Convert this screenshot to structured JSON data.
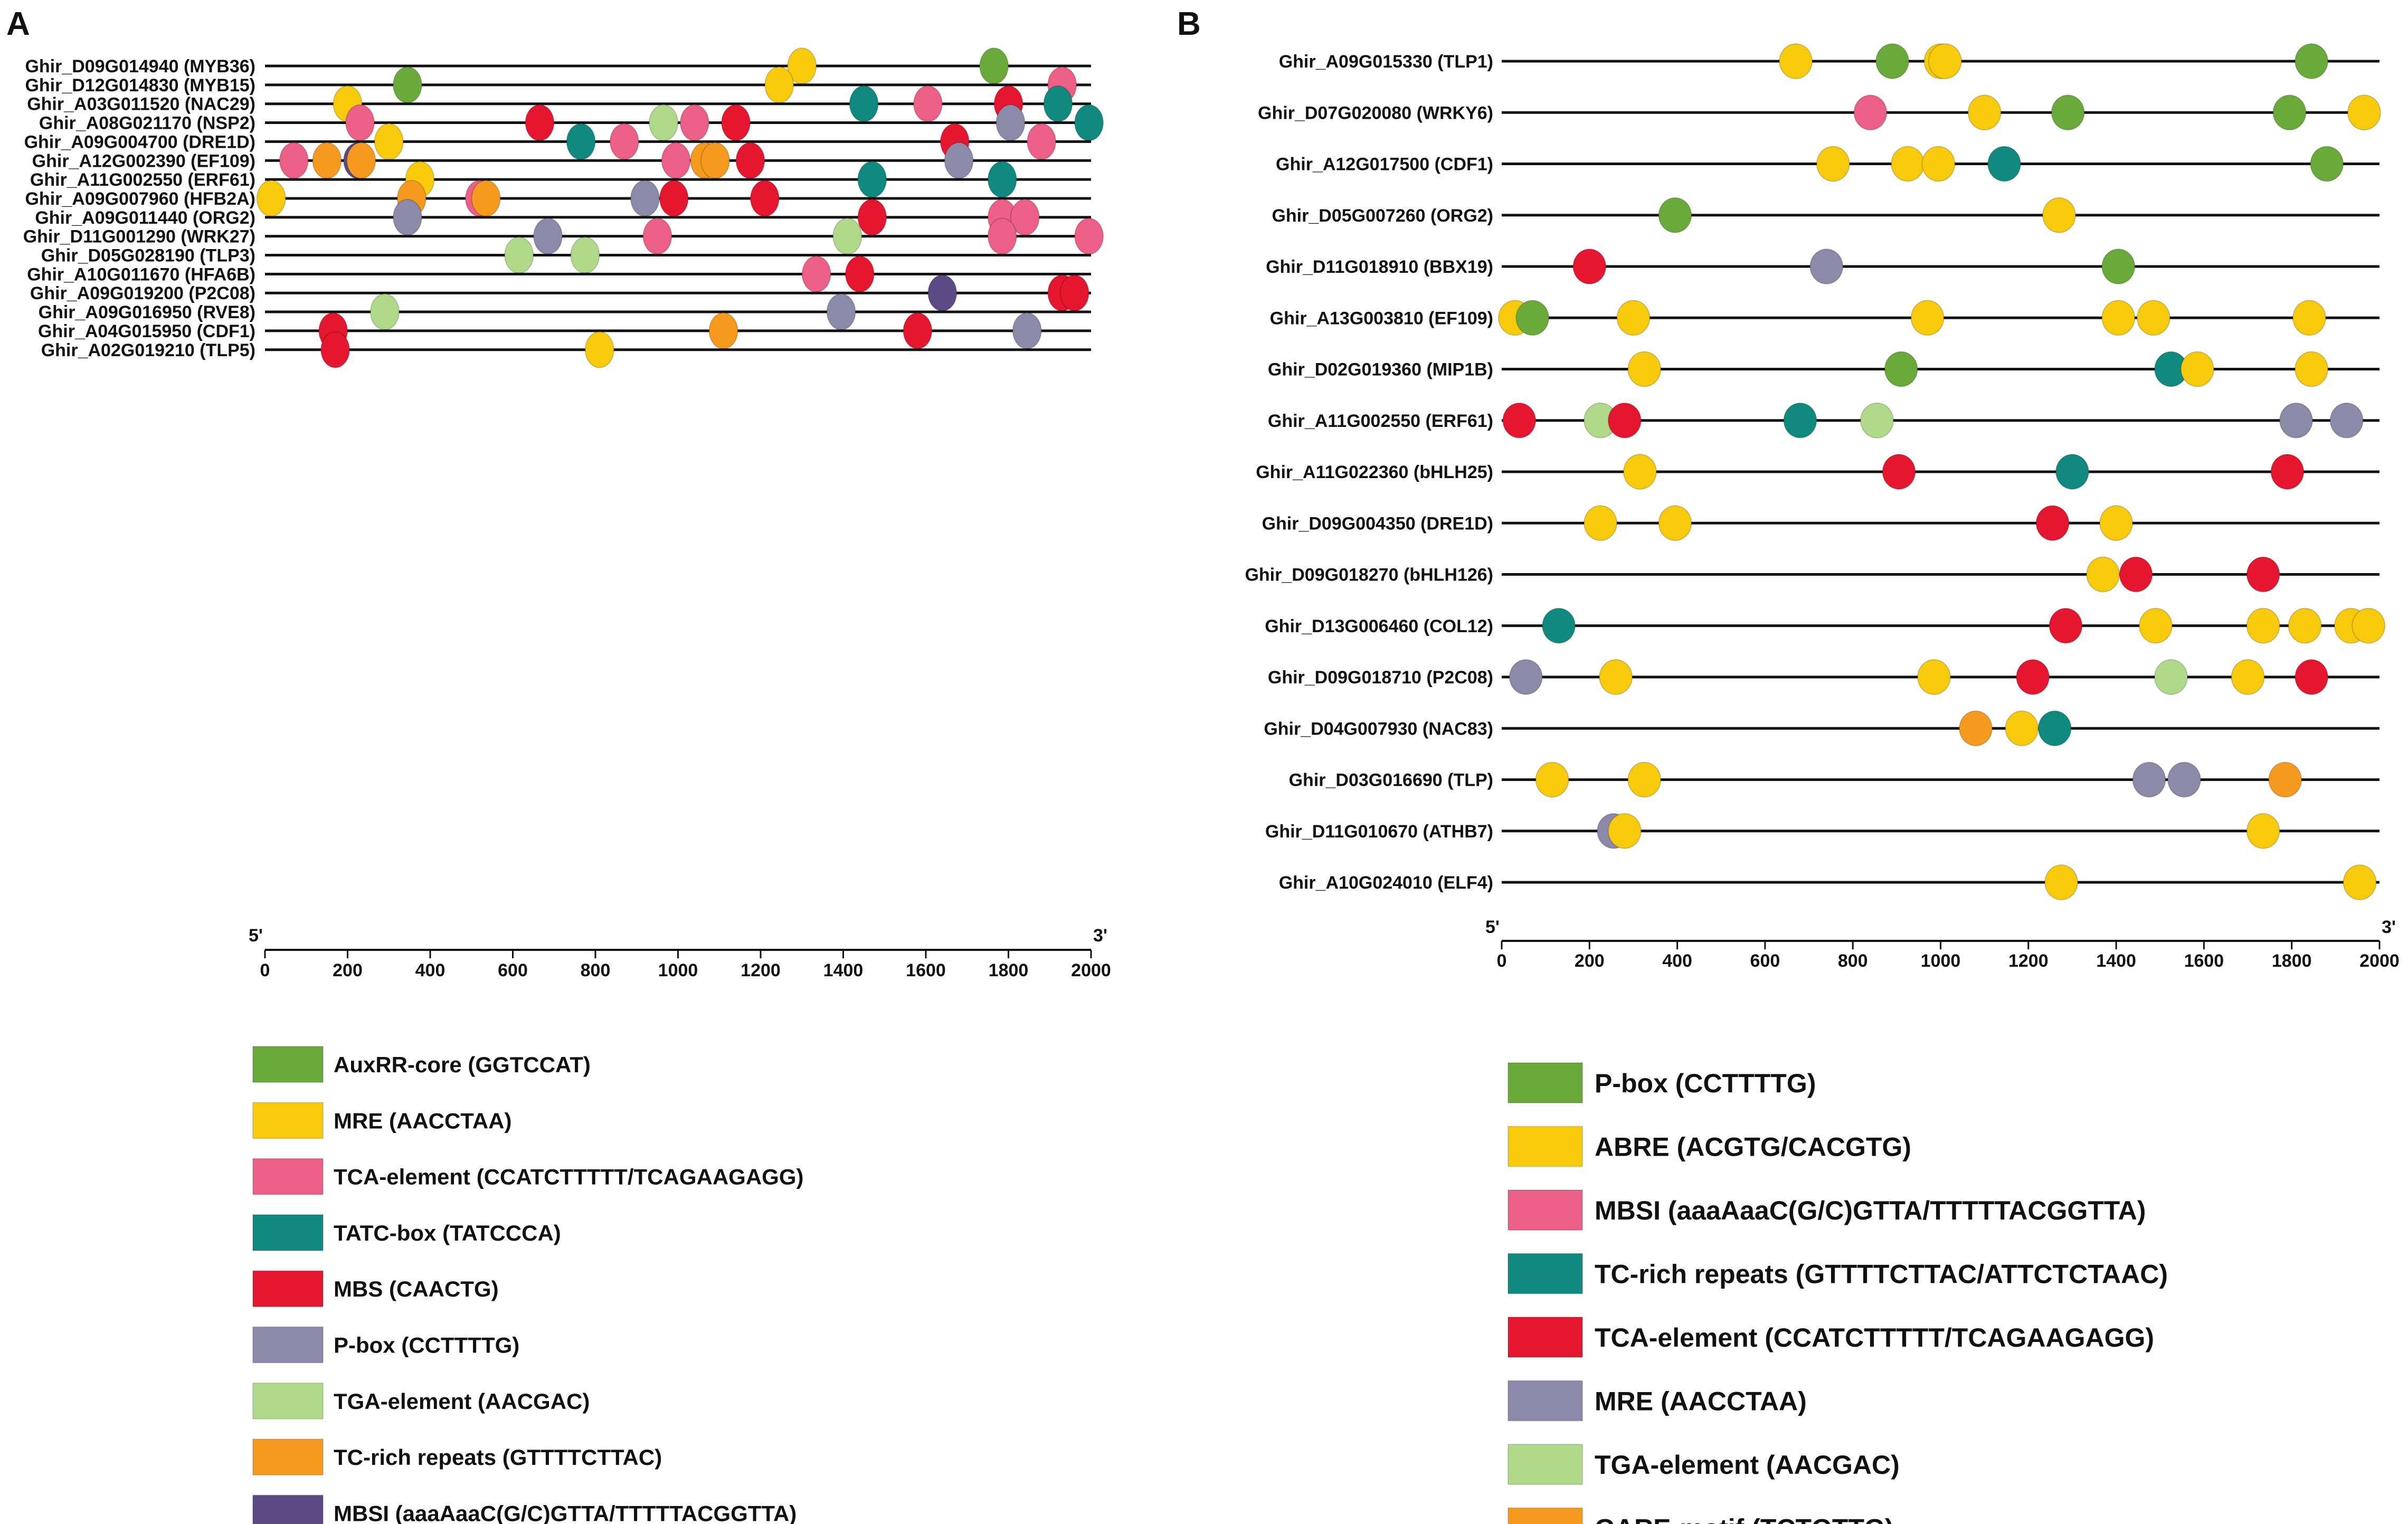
{
  "panels": [
    {
      "letter": "A",
      "axis": {
        "min": 0,
        "max": 2000,
        "ticks": [
          "0",
          "200",
          "400",
          "600",
          "800",
          "1000",
          "1200",
          "1400",
          "1600",
          "1800",
          "2000"
        ],
        "left_label": "5'",
        "right_label": "3'"
      },
      "genes": [
        {
          "label": "Ghir_D09G014940 (MYB36)",
          "elements": [
            {
              "pos": 1300,
              "type": "MRE"
            },
            {
              "pos": 1765,
              "type": "AuxRR"
            }
          ]
        },
        {
          "label": "Ghir_D12G014830 (MYB15)",
          "elements": [
            {
              "pos": 345,
              "type": "AuxRR"
            },
            {
              "pos": 1245,
              "type": "MRE"
            },
            {
              "pos": 1930,
              "type": "TCA"
            }
          ]
        },
        {
          "label": "Ghir_A03G011520 (NAC29)",
          "elements": [
            {
              "pos": 200,
              "type": "MRE"
            },
            {
              "pos": 1450,
              "type": "TATC"
            },
            {
              "pos": 1605,
              "type": "TCA"
            },
            {
              "pos": 1800,
              "type": "MBS"
            },
            {
              "pos": 1920,
              "type": "TATC"
            }
          ]
        },
        {
          "label": "Ghir_A08G021170 (NSP2)",
          "elements": [
            {
              "pos": 230,
              "type": "TCA"
            },
            {
              "pos": 665,
              "type": "MBS"
            },
            {
              "pos": 965,
              "type": "TGA"
            },
            {
              "pos": 1040,
              "type": "TCA"
            },
            {
              "pos": 1140,
              "type": "MBS"
            },
            {
              "pos": 1805,
              "type": "Pbox"
            },
            {
              "pos": 1995,
              "type": "TATC"
            }
          ]
        },
        {
          "label": "Ghir_A09G004700 (DRE1D)",
          "elements": [
            {
              "pos": 300,
              "type": "MRE"
            },
            {
              "pos": 765,
              "type": "TATC"
            },
            {
              "pos": 870,
              "type": "TCA"
            },
            {
              "pos": 1670,
              "type": "MBS"
            },
            {
              "pos": 1880,
              "type": "TCA"
            }
          ]
        },
        {
          "label": "Ghir_A12G002390 (EF109)",
          "elements": [
            {
              "pos": 70,
              "type": "TCA"
            },
            {
              "pos": 150,
              "type": "TCrich"
            },
            {
              "pos": 225,
              "type": "MBSI"
            },
            {
              "pos": 233,
              "type": "TCrich"
            },
            {
              "pos": 995,
              "type": "TCA"
            },
            {
              "pos": 1065,
              "type": "TCrich"
            },
            {
              "pos": 1090,
              "type": "TCrich"
            },
            {
              "pos": 1175,
              "type": "MBS"
            },
            {
              "pos": 1680,
              "type": "Pbox"
            }
          ]
        },
        {
          "label": "Ghir_A11G002550 (ERF61)",
          "elements": [
            {
              "pos": 375,
              "type": "MRE"
            },
            {
              "pos": 1470,
              "type": "TATC"
            },
            {
              "pos": 1785,
              "type": "TATC"
            }
          ]
        },
        {
          "label": "Ghir_A09G007960 (HFB2A)",
          "elements": [
            {
              "pos": 15,
              "type": "MRE"
            },
            {
              "pos": 355,
              "type": "TCrich"
            },
            {
              "pos": 520,
              "type": "TCA"
            },
            {
              "pos": 535,
              "type": "TCrich"
            },
            {
              "pos": 920,
              "type": "Pbox"
            },
            {
              "pos": 990,
              "type": "MBS"
            },
            {
              "pos": 1210,
              "type": "MBS"
            }
          ]
        },
        {
          "label": "Ghir_A09G011440 (ORG2)",
          "elements": [
            {
              "pos": 345,
              "type": "Pbox"
            },
            {
              "pos": 1470,
              "type": "MBS"
            },
            {
              "pos": 1785,
              "type": "TCA"
            },
            {
              "pos": 1840,
              "type": "TCA"
            }
          ]
        },
        {
          "label": "Ghir_D11G001290 (WRK27)",
          "elements": [
            {
              "pos": 685,
              "type": "Pbox"
            },
            {
              "pos": 950,
              "type": "TCA"
            },
            {
              "pos": 1410,
              "type": "TGA"
            },
            {
              "pos": 1785,
              "type": "TCA"
            },
            {
              "pos": 1995,
              "type": "TCA"
            }
          ]
        },
        {
          "label": "Ghir_D05G028190 (TLP3)",
          "elements": [
            {
              "pos": 615,
              "type": "TGA"
            },
            {
              "pos": 775,
              "type": "TGA"
            }
          ]
        },
        {
          "label": "Ghir_A10G011670 (HFA6B)",
          "elements": [
            {
              "pos": 1335,
              "type": "TCA"
            },
            {
              "pos": 1440,
              "type": "MBS"
            }
          ]
        },
        {
          "label": "Ghir_A09G019200 (P2C08)",
          "elements": [
            {
              "pos": 1640,
              "type": "MBSI"
            },
            {
              "pos": 1930,
              "type": "MBS"
            },
            {
              "pos": 1960,
              "type": "MBS"
            }
          ]
        },
        {
          "label": "Ghir_A09G016950 (RVE8)",
          "elements": [
            {
              "pos": 290,
              "type": "TGA"
            },
            {
              "pos": 1395,
              "type": "Pbox"
            }
          ]
        },
        {
          "label": "Ghir_A04G015950 (CDF1)",
          "elements": [
            {
              "pos": 165,
              "type": "MBS"
            },
            {
              "pos": 1110,
              "type": "TCrich"
            },
            {
              "pos": 1580,
              "type": "MBS"
            },
            {
              "pos": 1845,
              "type": "Pbox"
            }
          ]
        },
        {
          "label": "Ghir_A02G019210 (TLP5)",
          "elements": [
            {
              "pos": 170,
              "type": "MBS"
            },
            {
              "pos": 810,
              "type": "MRE"
            }
          ]
        }
      ],
      "legend": [
        {
          "type": "AuxRR",
          "label": "AuxRR-core (GGTCCAT)"
        },
        {
          "type": "MRE",
          "label": "MRE (AACCTAA)"
        },
        {
          "type": "TCA",
          "label": "TCA-element (CCATCTTTTT/TCAGAAGAGG)"
        },
        {
          "type": "TATC",
          "label": "TATC-box (TATCCCA)"
        },
        {
          "type": "MBS",
          "label": "MBS (CAACTG)"
        },
        {
          "type": "Pbox",
          "label": "P-box (CCTTTTG)"
        },
        {
          "type": "TGA",
          "label": "TGA-element (AACGAC)"
        },
        {
          "type": "TCrich",
          "label": "TC-rich repeats (GTTTTCTTAC)"
        },
        {
          "type": "MBSI",
          "label": "MBSI (aaaAaaC(G/C)GTTA/TTTTTACGGTTA)"
        }
      ]
    },
    {
      "letter": "B",
      "axis": {
        "min": 0,
        "max": 2000,
        "ticks": [
          "0",
          "200",
          "400",
          "600",
          "800",
          "1000",
          "1200",
          "1400",
          "1600",
          "1800",
          "2000"
        ],
        "left_label": "5'",
        "right_label": "3'"
      },
      "genes": [
        {
          "label": "Ghir_A09G015330 (TLP1)",
          "elements": [
            {
              "pos": 670,
              "type": "ABRE"
            },
            {
              "pos": 890,
              "type": "Pbox"
            },
            {
              "pos": 1000,
              "type": "ABRE"
            },
            {
              "pos": 1010,
              "type": "ABRE"
            },
            {
              "pos": 1845,
              "type": "Pbox"
            }
          ]
        },
        {
          "label": "Ghir_D07G020080 (WRKY6)",
          "elements": [
            {
              "pos": 840,
              "type": "MBSI"
            },
            {
              "pos": 1100,
              "type": "ABRE"
            },
            {
              "pos": 1290,
              "type": "Pbox"
            },
            {
              "pos": 1795,
              "type": "Pbox"
            },
            {
              "pos": 1965,
              "type": "ABRE"
            }
          ]
        },
        {
          "label": "Ghir_A12G017500 (CDF1)",
          "elements": [
            {
              "pos": 755,
              "type": "ABRE"
            },
            {
              "pos": 925,
              "type": "ABRE"
            },
            {
              "pos": 995,
              "type": "ABRE"
            },
            {
              "pos": 1145,
              "type": "TCrich"
            },
            {
              "pos": 1880,
              "type": "Pbox"
            }
          ]
        },
        {
          "label": "Ghir_D05G007260 (ORG2)",
          "elements": [
            {
              "pos": 395,
              "type": "Pbox"
            },
            {
              "pos": 1270,
              "type": "ABRE"
            }
          ]
        },
        {
          "label": "Ghir_D11G018910 (BBX19)",
          "elements": [
            {
              "pos": 200,
              "type": "TCA"
            },
            {
              "pos": 740,
              "type": "MRE"
            },
            {
              "pos": 1405,
              "type": "Pbox"
            }
          ]
        },
        {
          "label": "Ghir_A13G003810 (EF109)",
          "elements": [
            {
              "pos": 30,
              "type": "ABRE"
            },
            {
              "pos": 70,
              "type": "Pbox"
            },
            {
              "pos": 300,
              "type": "ABRE"
            },
            {
              "pos": 970,
              "type": "ABRE"
            },
            {
              "pos": 1405,
              "type": "ABRE"
            },
            {
              "pos": 1485,
              "type": "ABRE"
            },
            {
              "pos": 1840,
              "type": "ABRE"
            }
          ]
        },
        {
          "label": "Ghir_D02G019360 (MIP1B)",
          "elements": [
            {
              "pos": 325,
              "type": "ABRE"
            },
            {
              "pos": 910,
              "type": "Pbox"
            },
            {
              "pos": 1525,
              "type": "TCrich"
            },
            {
              "pos": 1585,
              "type": "ABRE"
            },
            {
              "pos": 1845,
              "type": "ABRE"
            }
          ]
        },
        {
          "label": "Ghir_A11G002550 (ERF61)",
          "elements": [
            {
              "pos": 40,
              "type": "TCA"
            },
            {
              "pos": 225,
              "type": "TGA"
            },
            {
              "pos": 280,
              "type": "TCA"
            },
            {
              "pos": 680,
              "type": "TCrich"
            },
            {
              "pos": 855,
              "type": "TGA"
            },
            {
              "pos": 1810,
              "type": "MRE"
            },
            {
              "pos": 1925,
              "type": "MRE"
            }
          ]
        },
        {
          "label": "Ghir_A11G022360 (bHLH25)",
          "elements": [
            {
              "pos": 315,
              "type": "ABRE"
            },
            {
              "pos": 905,
              "type": "TCA"
            },
            {
              "pos": 1300,
              "type": "TCrich"
            },
            {
              "pos": 1790,
              "type": "TCA"
            }
          ]
        },
        {
          "label": "Ghir_D09G004350 (DRE1D)",
          "elements": [
            {
              "pos": 225,
              "type": "ABRE"
            },
            {
              "pos": 395,
              "type": "ABRE"
            },
            {
              "pos": 1255,
              "type": "TCA"
            },
            {
              "pos": 1400,
              "type": "ABRE"
            }
          ]
        },
        {
          "label": "Ghir_D09G018270 (bHLH126)",
          "elements": [
            {
              "pos": 1370,
              "type": "ABRE"
            },
            {
              "pos": 1445,
              "type": "TCA"
            },
            {
              "pos": 1735,
              "type": "TCA"
            }
          ]
        },
        {
          "label": "Ghir_D13G006460 (COL12)",
          "elements": [
            {
              "pos": 130,
              "type": "TCrich"
            },
            {
              "pos": 1285,
              "type": "TCA"
            },
            {
              "pos": 1490,
              "type": "ABRE"
            },
            {
              "pos": 1735,
              "type": "ABRE"
            },
            {
              "pos": 1830,
              "type": "ABRE"
            },
            {
              "pos": 1935,
              "type": "ABRE"
            },
            {
              "pos": 1975,
              "type": "ABRE"
            }
          ]
        },
        {
          "label": "Ghir_D09G018710 (P2C08)",
          "elements": [
            {
              "pos": 55,
              "type": "MRE"
            },
            {
              "pos": 260,
              "type": "ABRE"
            },
            {
              "pos": 985,
              "type": "ABRE"
            },
            {
              "pos": 1210,
              "type": "TCA"
            },
            {
              "pos": 1525,
              "type": "TGA"
            },
            {
              "pos": 1700,
              "type": "ABRE"
            },
            {
              "pos": 1845,
              "type": "TCA"
            }
          ]
        },
        {
          "label": "Ghir_D04G007930 (NAC83)",
          "elements": [
            {
              "pos": 1080,
              "type": "GARE"
            },
            {
              "pos": 1185,
              "type": "ABRE"
            },
            {
              "pos": 1260,
              "type": "TCrich"
            }
          ]
        },
        {
          "label": "Ghir_D03G016690 (TLP)",
          "elements": [
            {
              "pos": 115,
              "type": "ABRE"
            },
            {
              "pos": 325,
              "type": "ABRE"
            },
            {
              "pos": 1475,
              "type": "MRE"
            },
            {
              "pos": 1555,
              "type": "MRE"
            },
            {
              "pos": 1785,
              "type": "GARE"
            }
          ]
        },
        {
          "label": "Ghir_D11G010670 (ATHB7)",
          "elements": [
            {
              "pos": 255,
              "type": "MRE"
            },
            {
              "pos": 280,
              "type": "ABRE"
            },
            {
              "pos": 1735,
              "type": "ABRE"
            }
          ]
        },
        {
          "label": "Ghir_A10G024010 (ELF4)",
          "elements": [
            {
              "pos": 1275,
              "type": "ABRE"
            },
            {
              "pos": 1955,
              "type": "ABRE"
            }
          ]
        }
      ],
      "legend": [
        {
          "type": "Pbox",
          "label": "P-box (CCTTTTG)"
        },
        {
          "type": "ABRE",
          "label": "ABRE (ACGTG/CACGTG)"
        },
        {
          "type": "MBSI",
          "label": "MBSI (aaaAaaC(G/C)GTTA/TTTTTACGGTTA)"
        },
        {
          "type": "TCrich",
          "label": "TC-rich repeats (GTTTTCTTAC/ATTCTCTAAC)"
        },
        {
          "type": "TCA",
          "label": "TCA-element (CCATCTTTTT/TCAGAAGAGG)"
        },
        {
          "type": "MRE",
          "label": "MRE (AACCTAA)"
        },
        {
          "type": "TGA",
          "label": "TGA-element (AACGAC)"
        },
        {
          "type": "GARE",
          "label": "GARE-motif (TCTGTTG)"
        }
      ]
    }
  ],
  "colors": {
    "A": {
      "AuxRR": "#6aaa3a",
      "MRE": "#f7cb0c",
      "TCA": "#ec5f86",
      "TATC": "#108a7e",
      "MBS": "#e5162f",
      "Pbox": "#8c89a9",
      "TGA": "#b1d98a",
      "TCrich": "#f59a1e",
      "MBSI": "#5a4a85"
    },
    "B": {
      "Pbox": "#6aaa3a",
      "ABRE": "#f7cb0c",
      "MBSI": "#ec5f86",
      "TCrich": "#108a7e",
      "TCA": "#e5162f",
      "MRE": "#8c89a9",
      "TGA": "#b1d98a",
      "GARE": "#f59a1e"
    }
  }
}
